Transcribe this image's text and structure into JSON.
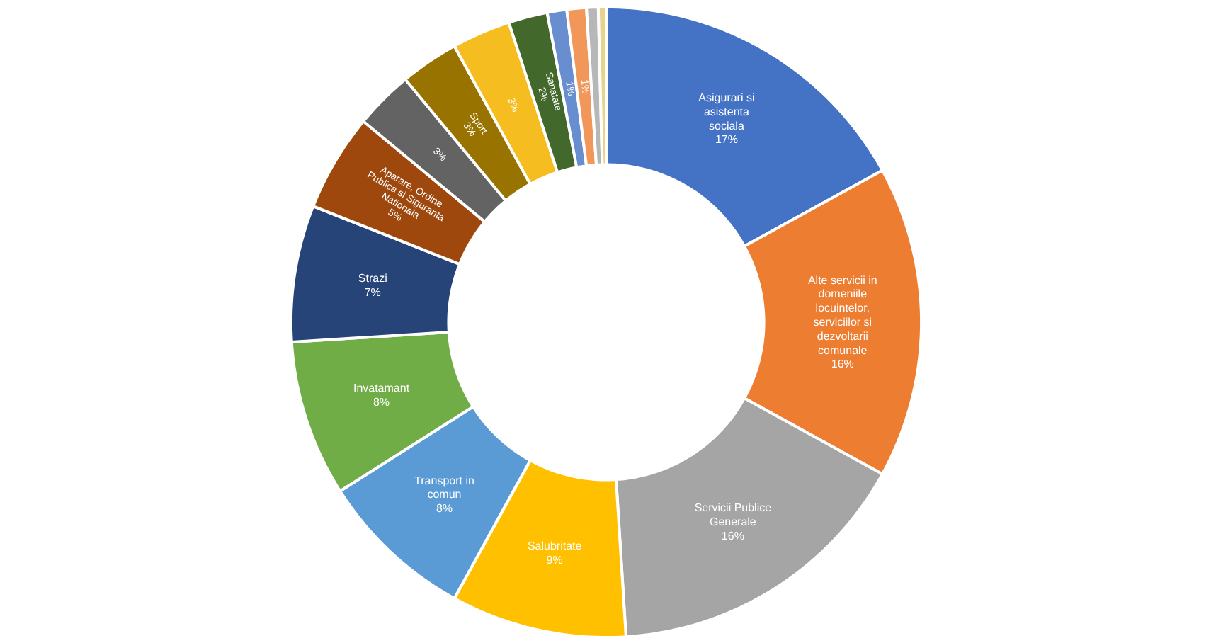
{
  "chart_data": {
    "type": "donut",
    "categories": [
      "Asigurari si asistenta sociala",
      "Alte servicii in domeniile locuintelor, serviciilor si dezvoltarii comunale",
      "Servicii Publice Generale",
      "Salubritate",
      "Transport in comun",
      "Invatamant",
      "Strazi",
      "Aparare, Ordine Publica si Siguranta Nationala",
      null,
      "Sport",
      null,
      "Sanatate",
      null,
      null,
      null,
      null
    ],
    "values": [
      17,
      16,
      16,
      9,
      8,
      8,
      7,
      5,
      3,
      3,
      3,
      2,
      1,
      1,
      0.6,
      0.4
    ],
    "value_labels": [
      "17%",
      "16%",
      "16%",
      "9%",
      "8%",
      "8%",
      "7%",
      "5%",
      "3%",
      "3%",
      "3%",
      "2%",
      "1%",
      "1%",
      null,
      null
    ],
    "colors": [
      "#4472c4",
      "#ed7d31",
      "#a5a5a5",
      "#ffc000",
      "#5b9bd5",
      "#70ad47",
      "#264478",
      "#9e480e",
      "#636363",
      "#997300",
      "#f5bd1f",
      "#43682b",
      "#698ed0",
      "#f1975a",
      "#b7b7b7",
      "#e8d38a"
    ]
  }
}
